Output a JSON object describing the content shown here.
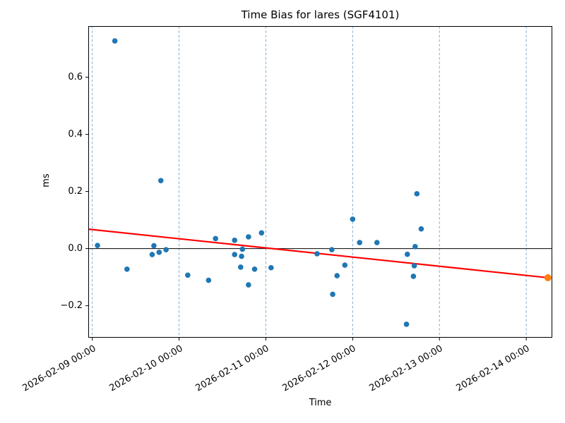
{
  "chart_data": {
    "type": "scatter",
    "title": "Time Bias for lares (SGF4101)",
    "xlabel": "Time",
    "ylabel": "ms",
    "x_unit": "days since 2026-02-09 00:00",
    "x_tick_days": [
      0,
      1,
      2,
      3,
      4,
      5
    ],
    "x_tick_labels": [
      "2026-02-09 00:00",
      "2026-02-10 00:00",
      "2026-02-11 00:00",
      "2026-02-12 00:00",
      "2026-02-13 00:00",
      "2026-02-14 00:00"
    ],
    "y_ticks": [
      -0.2,
      0.0,
      0.2,
      0.4,
      0.6
    ],
    "y_tick_labels": [
      "−0.2",
      "0.0",
      "0.2",
      "0.4",
      "0.6"
    ],
    "xlim_days": [
      -0.046,
      5.3
    ],
    "ylim": [
      -0.312,
      0.779
    ],
    "grid": {
      "vertical": true,
      "horizontal": false,
      "style": "dashed",
      "color": "#7fadd1"
    },
    "zero_line": {
      "y": 0.0,
      "color": "#000000"
    },
    "series": [
      {
        "name": "time-bias-points",
        "type": "scatter",
        "color": "#1f77b4",
        "radius": 3.8,
        "points": [
          [
            0.06,
            0.011
          ],
          [
            0.26,
            0.727
          ],
          [
            0.4,
            -0.072
          ],
          [
            0.69,
            -0.021
          ],
          [
            0.71,
            0.01
          ],
          [
            0.77,
            -0.013
          ],
          [
            0.79,
            0.238
          ],
          [
            0.85,
            -0.004
          ],
          [
            1.1,
            -0.093
          ],
          [
            1.34,
            -0.111
          ],
          [
            1.42,
            0.035
          ],
          [
            1.64,
            0.029
          ],
          [
            1.64,
            -0.021
          ],
          [
            1.71,
            -0.065
          ],
          [
            1.72,
            -0.027
          ],
          [
            1.73,
            -0.002
          ],
          [
            1.8,
            0.041
          ],
          [
            1.8,
            -0.127
          ],
          [
            1.87,
            -0.072
          ],
          [
            1.95,
            0.055
          ],
          [
            2.06,
            -0.067
          ],
          [
            2.59,
            -0.018
          ],
          [
            2.76,
            -0.004
          ],
          [
            2.77,
            -0.16
          ],
          [
            2.82,
            -0.095
          ],
          [
            2.91,
            -0.058
          ],
          [
            3.0,
            0.103
          ],
          [
            3.08,
            0.021
          ],
          [
            3.28,
            0.021
          ],
          [
            3.62,
            -0.265
          ],
          [
            3.63,
            -0.02
          ],
          [
            3.7,
            -0.097
          ],
          [
            3.71,
            -0.06
          ],
          [
            3.72,
            0.007
          ],
          [
            3.74,
            0.192
          ],
          [
            3.79,
            0.069
          ]
        ]
      },
      {
        "name": "latest-point",
        "type": "scatter",
        "color": "#ff7f0e",
        "radius": 5,
        "points": [
          [
            5.25,
            -0.102
          ]
        ]
      },
      {
        "name": "trend-line",
        "type": "line",
        "color": "#ff0000",
        "width": 2.2,
        "points": [
          [
            -0.046,
            0.068
          ],
          [
            5.25,
            -0.102
          ]
        ]
      }
    ]
  }
}
